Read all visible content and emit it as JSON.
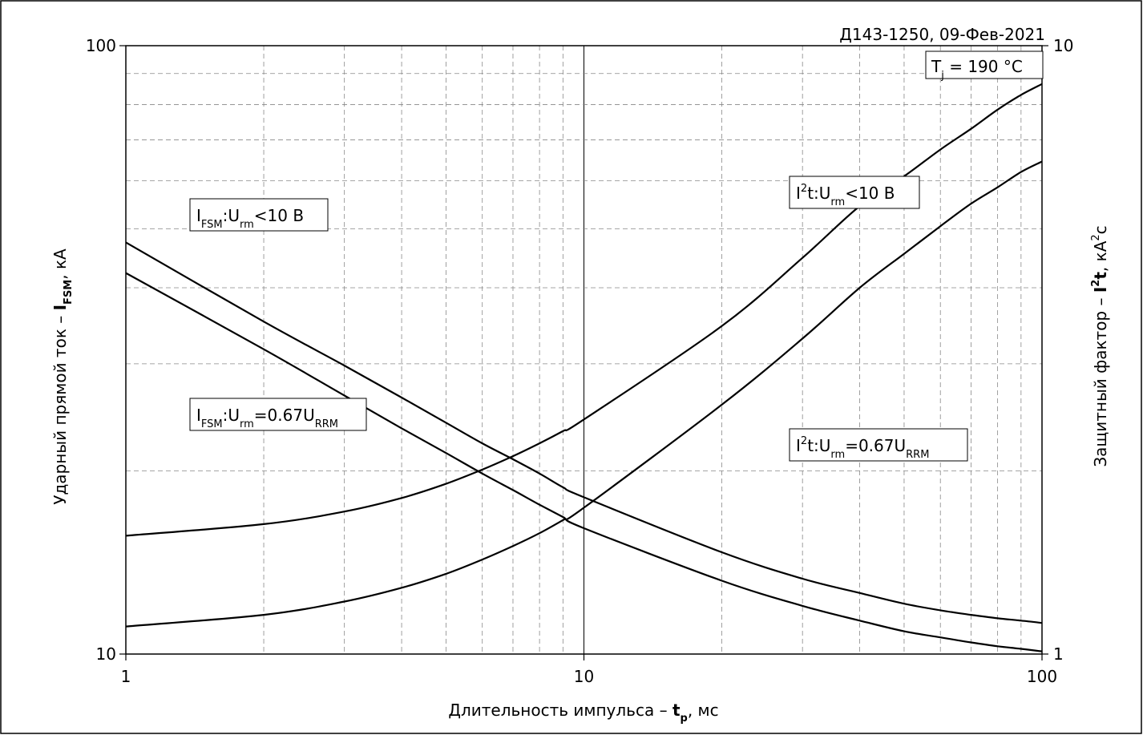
{
  "chart_data": {
    "type": "line",
    "header": "Д143-1250, 09-Фев-2021",
    "condition": {
      "symbol": "T",
      "sub": "j",
      "rest": " = 190 °C"
    },
    "x_axis": {
      "label_prefix": "Длительность импульса – ",
      "label_symbol": "t",
      "label_sub": "p",
      "label_suffix": ", мс",
      "scale": "log",
      "range": [
        1,
        100
      ],
      "ticks": [
        "1",
        "10",
        "100"
      ]
    },
    "y_left": {
      "label_prefix": "Ударный прямой ток – ",
      "label_symbol": "I",
      "label_sub": "FSM",
      "label_suffix": ", кА",
      "scale": "log",
      "range": [
        10,
        100
      ],
      "ticks": [
        "10",
        "100"
      ]
    },
    "y_right": {
      "label_prefix": "Защитный фактор – ",
      "label_symbol": "I",
      "label_sup": "2",
      "label_symbol2": "t",
      "label_suffix": ", кА",
      "label_sup2": "2",
      "label_suffix2": "с",
      "scale": "log",
      "range": [
        1,
        10
      ],
      "ticks": [
        "1",
        "10"
      ]
    },
    "grid": true,
    "series": [
      {
        "name": "IFSM:Urm<10 В",
        "axis": "left",
        "x": [
          1,
          2,
          3,
          4,
          5,
          6,
          7,
          8,
          9,
          10,
          20,
          30,
          40,
          50,
          60,
          70,
          80,
          90,
          100
        ],
        "y": [
          47.5,
          35.2,
          29.8,
          26.4,
          24.0,
          22.2,
          20.9,
          19.8,
          18.8,
          18.1,
          14.7,
          13.3,
          12.6,
          12.1,
          11.8,
          11.6,
          11.45,
          11.35,
          11.25
        ]
      },
      {
        "name": "IFSM:Urm=0.67URRM",
        "axis": "left",
        "x": [
          1,
          2,
          3,
          4,
          5,
          6,
          7,
          8,
          9,
          10,
          20,
          30,
          40,
          50,
          60,
          70,
          80,
          90,
          100
        ],
        "y": [
          42.3,
          31.7,
          26.6,
          23.5,
          21.4,
          19.8,
          18.6,
          17.6,
          16.8,
          16.1,
          13.2,
          12.0,
          11.35,
          10.9,
          10.65,
          10.45,
          10.3,
          10.2,
          10.1
        ]
      },
      {
        "name": "I2t:Urm<10 В",
        "axis": "right",
        "x": [
          1,
          2,
          3,
          4,
          5,
          6,
          7,
          8,
          9,
          10,
          20,
          30,
          40,
          50,
          60,
          70,
          80,
          90,
          100
        ],
        "y": [
          1.565,
          1.635,
          1.715,
          1.805,
          1.905,
          2.01,
          2.115,
          2.22,
          2.325,
          2.43,
          3.46,
          4.48,
          5.45,
          6.1,
          6.75,
          7.3,
          7.85,
          8.3,
          8.65
        ]
      },
      {
        "name": "I2t:Urm=0.67URRM",
        "axis": "right",
        "x": [
          1,
          2,
          3,
          4,
          5,
          6,
          7,
          8,
          9,
          10,
          20,
          30,
          40,
          50,
          60,
          70,
          80,
          90,
          100
        ],
        "y": [
          1.11,
          1.16,
          1.22,
          1.285,
          1.355,
          1.43,
          1.505,
          1.58,
          1.66,
          1.74,
          2.57,
          3.3,
          4.0,
          4.55,
          5.05,
          5.5,
          5.85,
          6.2,
          6.45
        ]
      }
    ],
    "labels": [
      {
        "id": "ifsm-low",
        "main": "I",
        "sub1": "FSM",
        "mid": ":U",
        "sub2": "rm",
        "tail": "<10 В",
        "sub3": ""
      },
      {
        "id": "ifsm-067",
        "main": "I",
        "sub1": "FSM",
        "mid": ":U",
        "sub2": "rm",
        "tail": "=0.67U",
        "sub3": "RRM"
      },
      {
        "id": "i2t-low",
        "main": "I",
        "sup": "2",
        "mid": "t:U",
        "sub2": "rm",
        "tail": "<10 В",
        "sub3": ""
      },
      {
        "id": "i2t-067",
        "main": "I",
        "sup": "2",
        "mid": "t:U",
        "sub2": "rm",
        "tail": "=0.67U",
        "sub3": "RRM"
      }
    ]
  }
}
